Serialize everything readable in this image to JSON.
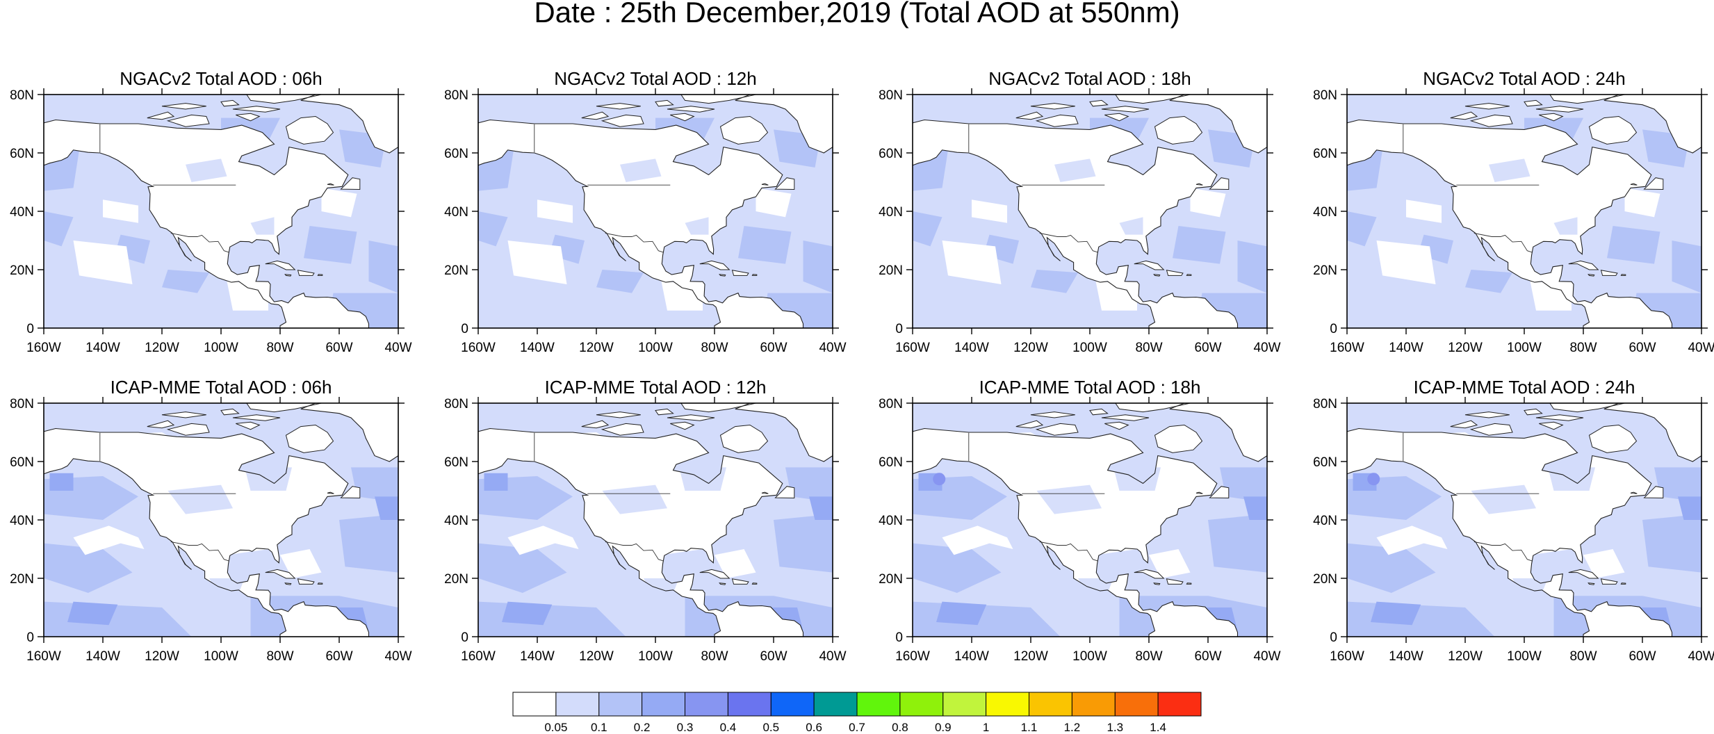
{
  "title": "Date : 25th December,2019 (Total AOD at 550nm)",
  "panels": [
    {
      "title": "NGACv2 Total AOD : 06h",
      "model": "NGACv2",
      "forecast_hour": "06h"
    },
    {
      "title": "NGACv2 Total AOD : 12h",
      "model": "NGACv2",
      "forecast_hour": "12h"
    },
    {
      "title": "NGACv2 Total AOD : 18h",
      "model": "NGACv2",
      "forecast_hour": "18h"
    },
    {
      "title": "NGACv2 Total AOD : 24h",
      "model": "NGACv2",
      "forecast_hour": "24h"
    },
    {
      "title": "ICAP-MME Total AOD : 06h",
      "model": "ICAP-MME",
      "forecast_hour": "06h"
    },
    {
      "title": "ICAP-MME Total AOD : 12h",
      "model": "ICAP-MME",
      "forecast_hour": "12h"
    },
    {
      "title": "ICAP-MME Total AOD : 18h",
      "model": "ICAP-MME",
      "forecast_hour": "18h"
    },
    {
      "title": "ICAP-MME Total AOD : 24h",
      "model": "ICAP-MME",
      "forecast_hour": "24h"
    }
  ],
  "axes": {
    "lat_ticks": [
      "0",
      "20N",
      "40N",
      "60N",
      "80N"
    ],
    "lon_ticks": [
      "160W",
      "140W",
      "120W",
      "100W",
      "80W",
      "60W",
      "40W"
    ],
    "lat_range": [
      0,
      80
    ],
    "lon_range": [
      -160,
      -40
    ]
  },
  "colorbar": {
    "labels": [
      "0.05",
      "0.1",
      "0.2",
      "0.3",
      "0.4",
      "0.5",
      "0.6",
      "0.7",
      "0.8",
      "0.9",
      "1",
      "1.1",
      "1.2",
      "1.3",
      "1.4"
    ],
    "colors": [
      "#ffffff",
      "#d3dcfb",
      "#b3c3f7",
      "#95aaf4",
      "#8795f1",
      "#6a74ef",
      "#0f66f8",
      "#009a94",
      "#61f50c",
      "#8ff10b",
      "#c1f43c",
      "#f9f801",
      "#fac401",
      "#f99b05",
      "#f86f0a",
      "#fb2e12"
    ]
  },
  "colors": {
    "land_fill": "#ffffff",
    "background_aod": "#d3dcfb",
    "moderate_aod": "#b3c3f7",
    "high_aod": "#95aaf4"
  }
}
